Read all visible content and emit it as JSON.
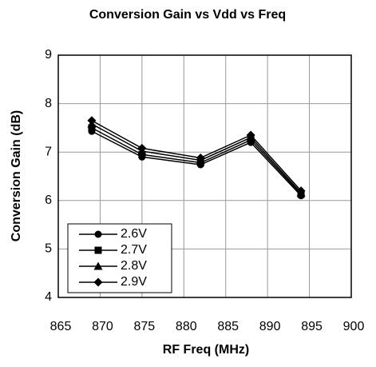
{
  "chart_data": {
    "type": "line",
    "title": "Conversion Gain vs Vdd vs Freq",
    "xlabel": "RF Freq (MHz)",
    "ylabel": "Conversion Gain (dB)",
    "x": [
      869,
      875,
      882,
      888,
      894
    ],
    "series": [
      {
        "name": "2.6V",
        "color": "#000000",
        "marker": "circle",
        "values": [
          7.43,
          6.9,
          6.74,
          7.2,
          6.1
        ]
      },
      {
        "name": "2.7V",
        "color": "#000000",
        "marker": "square",
        "values": [
          7.5,
          6.95,
          6.78,
          7.25,
          6.13
        ]
      },
      {
        "name": "2.8V",
        "color": "#000000",
        "marker": "triangle",
        "values": [
          7.58,
          7.02,
          6.83,
          7.3,
          6.16
        ]
      },
      {
        "name": "2.9V",
        "color": "#000000",
        "marker": "diamond",
        "values": [
          7.65,
          7.08,
          6.88,
          7.35,
          6.2
        ]
      }
    ],
    "xlim": [
      865,
      900
    ],
    "xticks": [
      865,
      870,
      875,
      880,
      885,
      890,
      895,
      900
    ],
    "ylim": [
      4,
      9
    ],
    "yticks": [
      4,
      5,
      6,
      7,
      8,
      9
    ],
    "grid": true,
    "legend": "lower left"
  }
}
